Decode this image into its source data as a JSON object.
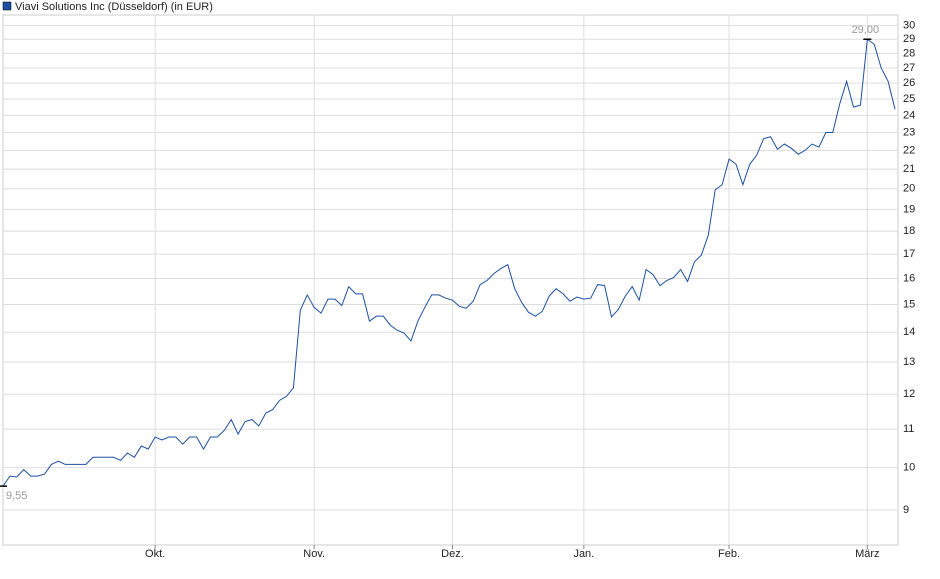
{
  "chart_data": {
    "type": "line",
    "log_scale": true,
    "grid": true,
    "legend": "top-left",
    "series": [
      {
        "name": "Viavi Solutions Inc (Düsseldorf) (in EUR)",
        "color": "#1c4fa0",
        "values": [
          9.55,
          9.79,
          9.77,
          9.95,
          9.79,
          9.79,
          9.84,
          10.08,
          10.16,
          10.08,
          10.08,
          10.08,
          10.08,
          10.26,
          10.26,
          10.26,
          10.26,
          10.18,
          10.37,
          10.26,
          10.55,
          10.47,
          10.79,
          10.71,
          10.79,
          10.79,
          10.6,
          10.79,
          10.79,
          10.47,
          10.79,
          10.79,
          10.97,
          11.27,
          10.87,
          11.21,
          11.27,
          11.09,
          11.45,
          11.55,
          11.82,
          11.94,
          12.19,
          14.79,
          15.36,
          14.89,
          14.68,
          15.2,
          15.2,
          14.96,
          15.68,
          15.4,
          15.4,
          14.39,
          14.57,
          14.57,
          14.25,
          14.07,
          13.97,
          13.7,
          14.39,
          14.89,
          15.36,
          15.36,
          15.24,
          15.16,
          14.93,
          14.86,
          15.12,
          15.76,
          15.92,
          16.2,
          16.4,
          16.56,
          15.6,
          15.08,
          14.71,
          14.57,
          14.75,
          15.32,
          15.6,
          15.4,
          15.12,
          15.28,
          15.2,
          15.24,
          15.76,
          15.72,
          14.54,
          14.82,
          15.32,
          15.68,
          15.16,
          16.36,
          16.16,
          15.72,
          15.92,
          16.04,
          16.36,
          15.88,
          16.68,
          16.96,
          17.82,
          19.95,
          20.2,
          21.53,
          21.26,
          20.2,
          21.26,
          21.74,
          22.65,
          22.76,
          22.06,
          22.35,
          22.12,
          21.79,
          22,
          22.35,
          22.18,
          23,
          23,
          24.69,
          26.12,
          24.5,
          24.62,
          29.0,
          28.64,
          27,
          26.12,
          24.37
        ],
        "value_labels": [
          "9,55",
          null,
          null,
          null,
          null,
          null,
          null,
          null,
          null,
          null,
          null,
          null,
          null,
          null,
          null,
          null,
          null,
          null,
          null,
          null,
          null,
          null,
          null,
          null,
          null,
          null,
          null,
          null,
          null,
          null,
          null,
          null,
          null,
          null,
          null,
          null,
          null,
          null,
          null,
          null,
          null,
          null,
          null,
          null,
          null,
          null,
          null,
          null,
          null,
          null,
          null,
          null,
          null,
          null,
          null,
          null,
          null,
          null,
          null,
          null,
          null,
          null,
          null,
          null,
          null,
          null,
          null,
          null,
          null,
          null,
          null,
          null,
          null,
          null,
          null,
          null,
          null,
          null,
          null,
          null,
          null,
          null,
          null,
          null,
          null,
          null,
          null,
          null,
          null,
          null,
          null,
          null,
          null,
          null,
          null,
          null,
          null,
          null,
          null,
          null,
          null,
          null,
          null,
          null,
          null,
          null,
          null,
          null,
          null,
          null,
          null,
          null,
          null,
          null,
          null,
          null,
          null,
          null,
          null,
          null,
          null,
          null,
          null,
          null,
          null,
          "29,00",
          null,
          null,
          null,
          null
        ]
      }
    ],
    "categories": [
      null,
      null,
      null,
      null,
      null,
      null,
      null,
      null,
      null,
      null,
      null,
      null,
      null,
      null,
      null,
      null,
      null,
      null,
      null,
      null,
      null,
      null,
      "Okt.",
      null,
      null,
      null,
      null,
      null,
      null,
      null,
      null,
      null,
      null,
      null,
      null,
      null,
      null,
      null,
      null,
      null,
      null,
      null,
      null,
      null,
      null,
      "Nov.",
      null,
      null,
      null,
      null,
      null,
      null,
      null,
      null,
      null,
      null,
      null,
      null,
      null,
      null,
      null,
      null,
      null,
      null,
      null,
      "Dez.",
      null,
      null,
      null,
      null,
      null,
      null,
      null,
      null,
      null,
      null,
      null,
      null,
      null,
      null,
      null,
      null,
      null,
      null,
      "Jan.",
      null,
      null,
      null,
      null,
      null,
      null,
      null,
      null,
      null,
      null,
      null,
      null,
      null,
      null,
      null,
      null,
      null,
      null,
      null,
      null,
      "Feb.",
      null,
      null,
      null,
      null,
      null,
      null,
      null,
      null,
      null,
      null,
      null,
      null,
      null,
      null,
      null,
      null,
      null,
      null,
      null,
      "März",
      null,
      null,
      null,
      null
    ],
    "ylim": [
      8.25,
      30.8
    ],
    "yticks": [
      9,
      10,
      11,
      12,
      13,
      14,
      15,
      16,
      17,
      18,
      19,
      20,
      21,
      22,
      23,
      24,
      25,
      26,
      27,
      28,
      29,
      30
    ]
  }
}
